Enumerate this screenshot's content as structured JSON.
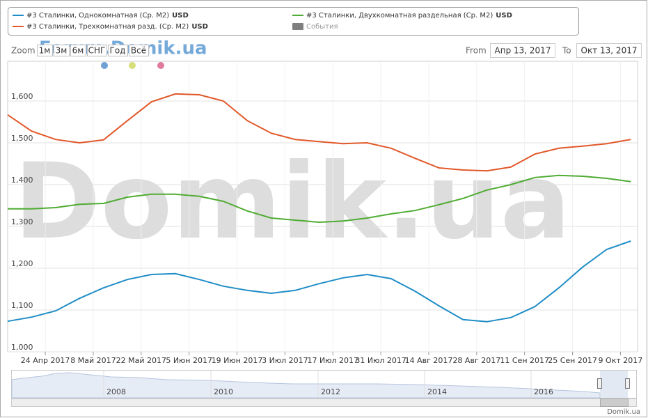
{
  "chart_data": {
    "type": "line",
    "legend": [
      {
        "name": "#3 Сталинки, Однокомнатная (Ср. M2)",
        "unit": "USD"
      },
      {
        "name": "#3 Сталинки, Двухкомнатная раздельная (Ср. M2)",
        "unit": "USD"
      },
      {
        "name": "#3 Сталинки, Трехкомнатная разд. (Ср. M2)",
        "unit": "USD"
      },
      {
        "name": "События",
        "color": "#7f7f7f"
      }
    ],
    "zoom_label": "Zoom",
    "zoom_buttons": [
      "1м",
      "3м",
      "6м",
      "СНГ",
      "Год",
      "Всё"
    ],
    "from_label": "From",
    "from_value": "Апр 13, 2017",
    "to_label": "To",
    "to_value": "Окт 13, 2017",
    "watermark": "Domik.ua",
    "forum_label": "Forum.Domik.ua",
    "credit": "Domik.ua",
    "x": [
      "2017-04-13",
      "2017-04-20",
      "2017-04-27",
      "2017-05-04",
      "2017-05-11",
      "2017-05-18",
      "2017-05-25",
      "2017-06-01",
      "2017-06-08",
      "2017-06-15",
      "2017-06-22",
      "2017-06-29",
      "2017-07-06",
      "2017-07-13",
      "2017-07-20",
      "2017-07-27",
      "2017-08-03",
      "2017-08-10",
      "2017-08-17",
      "2017-08-24",
      "2017-08-31",
      "2017-09-07",
      "2017-09-14",
      "2017-09-21",
      "2017-09-28",
      "2017-10-05",
      "2017-10-12"
    ],
    "series": [
      {
        "name": "#3 Сталинки, Однокомнатная (Ср. M2)",
        "color": "#1f8dc6",
        "values": [
          1073,
          1083,
          1098,
          1128,
          1153,
          1173,
          1185,
          1187,
          1173,
          1157,
          1147,
          1140,
          1147,
          1163,
          1177,
          1185,
          1175,
          1145,
          1110,
          1077,
          1072,
          1082,
          1108,
          1153,
          1203,
          1245,
          1265
        ]
      },
      {
        "name": "#3 Сталинки, Двухкомнатная раздельная (Ср. M2)",
        "color": "#4fac32",
        "values": [
          1342,
          1342,
          1345,
          1353,
          1355,
          1370,
          1377,
          1377,
          1372,
          1360,
          1337,
          1320,
          1315,
          1310,
          1313,
          1320,
          1330,
          1338,
          1352,
          1367,
          1387,
          1400,
          1417,
          1422,
          1420,
          1415,
          1407
        ]
      },
      {
        "name": "#3 Сталинки, Трехкомнатная разд. (Ср. M2)",
        "color": "#e1582a",
        "values": [
          1567,
          1528,
          1508,
          1500,
          1507,
          1553,
          1598,
          1617,
          1615,
          1600,
          1553,
          1523,
          1508,
          1503,
          1498,
          1500,
          1487,
          1463,
          1440,
          1435,
          1433,
          1442,
          1473,
          1487,
          1492,
          1498,
          1508
        ]
      }
    ],
    "xlim": [
      "2017-04-13",
      "2017-10-14"
    ],
    "xticks": [
      {
        "value": "2017-04-24",
        "label": "24 Апр 2017"
      },
      {
        "value": "2017-05-08",
        "label": "8 Май 2017"
      },
      {
        "value": "2017-05-22",
        "label": "22 Май 2017"
      },
      {
        "value": "2017-06-05",
        "label": "5 Июн 2017"
      },
      {
        "value": "2017-06-19",
        "label": "19 Июн 2017"
      },
      {
        "value": "2017-07-03",
        "label": "3 Июл 2017"
      },
      {
        "value": "2017-07-17",
        "label": "17 Июл 2017"
      },
      {
        "value": "2017-07-31",
        "label": "31 Июл 2017"
      },
      {
        "value": "2017-08-14",
        "label": "14 Авг 2017"
      },
      {
        "value": "2017-08-28",
        "label": "28 Авг 2017"
      },
      {
        "value": "2017-09-11",
        "label": "11 Сен 2017"
      },
      {
        "value": "2017-09-25",
        "label": "25 Сен 2017"
      },
      {
        "value": "2017-10-09",
        "label": "9 Окт 2017"
      }
    ],
    "ylim": [
      1000,
      1695
    ],
    "yticks": [
      {
        "value": 1000,
        "label": "1,000"
      },
      {
        "value": 1100,
        "label": "1,100"
      },
      {
        "value": 1200,
        "label": "1,200"
      },
      {
        "value": 1300,
        "label": "1,300"
      },
      {
        "value": 1400,
        "label": "1,400"
      },
      {
        "value": 1500,
        "label": "1,500"
      },
      {
        "value": 1600,
        "label": "1,600"
      }
    ],
    "grid": true,
    "navigator_years": [
      "2008",
      "2010",
      "2012",
      "2014",
      "2016"
    ]
  }
}
